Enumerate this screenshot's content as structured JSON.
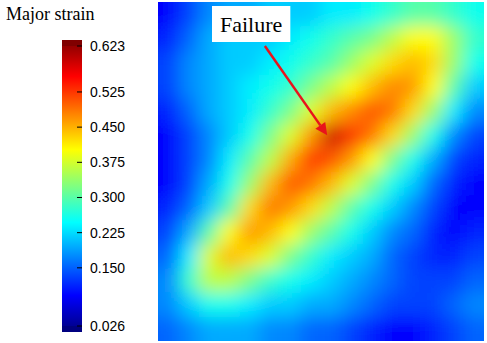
{
  "chart_data": {
    "type": "heatmap",
    "annotation": "Failure",
    "tick_labels": false,
    "cells": [
      [
        0.1,
        0.14,
        0.18,
        0.2,
        0.2,
        0.22,
        0.22,
        0.22,
        0.24,
        0.24,
        0.26,
        0.28,
        0.3,
        0.3,
        0.28,
        0.26
      ],
      [
        0.12,
        0.16,
        0.2,
        0.22,
        0.22,
        0.22,
        0.24,
        0.26,
        0.28,
        0.3,
        0.32,
        0.36,
        0.4,
        0.4,
        0.34,
        0.28
      ],
      [
        0.14,
        0.18,
        0.2,
        0.22,
        0.22,
        0.24,
        0.26,
        0.28,
        0.3,
        0.34,
        0.38,
        0.42,
        0.44,
        0.42,
        0.34,
        0.26
      ],
      [
        0.14,
        0.18,
        0.2,
        0.22,
        0.24,
        0.26,
        0.28,
        0.32,
        0.36,
        0.4,
        0.44,
        0.47,
        0.46,
        0.4,
        0.3,
        0.22
      ],
      [
        0.12,
        0.16,
        0.2,
        0.22,
        0.24,
        0.28,
        0.32,
        0.38,
        0.44,
        0.47,
        0.5,
        0.48,
        0.42,
        0.34,
        0.24,
        0.18
      ],
      [
        0.1,
        0.14,
        0.18,
        0.22,
        0.26,
        0.32,
        0.38,
        0.46,
        0.58,
        0.52,
        0.48,
        0.42,
        0.34,
        0.26,
        0.18,
        0.14
      ],
      [
        0.1,
        0.14,
        0.18,
        0.24,
        0.3,
        0.36,
        0.45,
        0.52,
        0.5,
        0.46,
        0.4,
        0.32,
        0.26,
        0.2,
        0.14,
        0.12
      ],
      [
        0.1,
        0.14,
        0.2,
        0.26,
        0.34,
        0.44,
        0.5,
        0.48,
        0.44,
        0.38,
        0.32,
        0.26,
        0.22,
        0.16,
        0.12,
        0.1
      ],
      [
        0.12,
        0.16,
        0.22,
        0.3,
        0.42,
        0.48,
        0.46,
        0.42,
        0.36,
        0.3,
        0.26,
        0.22,
        0.18,
        0.14,
        0.1,
        0.1
      ],
      [
        0.14,
        0.2,
        0.3,
        0.4,
        0.46,
        0.44,
        0.4,
        0.34,
        0.3,
        0.26,
        0.22,
        0.18,
        0.16,
        0.12,
        0.1,
        0.12
      ],
      [
        0.16,
        0.24,
        0.38,
        0.44,
        0.42,
        0.38,
        0.32,
        0.28,
        0.24,
        0.22,
        0.2,
        0.16,
        0.14,
        0.12,
        0.12,
        0.14
      ],
      [
        0.18,
        0.28,
        0.36,
        0.36,
        0.32,
        0.28,
        0.26,
        0.24,
        0.22,
        0.2,
        0.18,
        0.16,
        0.14,
        0.14,
        0.14,
        0.16
      ],
      [
        0.18,
        0.22,
        0.26,
        0.26,
        0.24,
        0.22,
        0.22,
        0.2,
        0.2,
        0.18,
        0.16,
        0.14,
        0.14,
        0.14,
        0.16,
        0.18
      ],
      [
        0.16,
        0.18,
        0.2,
        0.2,
        0.2,
        0.18,
        0.18,
        0.16,
        0.16,
        0.14,
        0.12,
        0.1,
        0.1,
        0.12,
        0.14,
        0.16
      ]
    ],
    "colorbar": {
      "label": "Major strain",
      "range": [
        0.026,
        0.623
      ],
      "ticks": [
        0.623,
        0.525,
        {
          "value": 0.45,
          "label": "0.450"
        },
        0.375,
        {
          "value": 0.3,
          "label": "0.300"
        },
        0.225,
        {
          "value": 0.15,
          "label": "0.150"
        },
        0.026
      ]
    }
  }
}
